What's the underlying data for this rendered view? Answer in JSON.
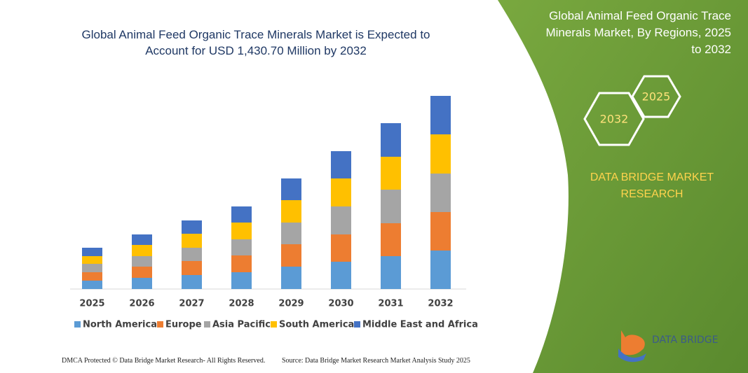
{
  "chart_data": {
    "type": "stacked_bar",
    "title": "Global Animal Feed Organic Trace Minerals Market is Expected to Account for USD 1,430.70 Million by 2032",
    "categories": [
      "2025",
      "2026",
      "2027",
      "2028",
      "2029",
      "2030",
      "2031",
      "2032"
    ],
    "series": [
      {
        "name": "North America",
        "color": "#5b9bd5",
        "values": [
          12,
          16,
          20,
          24,
          32,
          39,
          47,
          55
        ]
      },
      {
        "name": "Europe",
        "color": "#ed7d31",
        "values": [
          12,
          16,
          20,
          24,
          32,
          39,
          47,
          55
        ]
      },
      {
        "name": "Asia Pacific",
        "color": "#a5a5a5",
        "values": [
          12,
          15,
          19,
          23,
          31,
          40,
          48,
          55
        ]
      },
      {
        "name": "South America",
        "color": "#ffc000",
        "values": [
          11,
          16,
          20,
          24,
          32,
          40,
          47,
          56
        ]
      },
      {
        "name": "Middle East and Africa",
        "color": "#4472c4",
        "values": [
          12,
          15,
          19,
          23,
          31,
          39,
          48,
          55
        ]
      }
    ],
    "ylim": [
      0,
      280
    ]
  },
  "panel": {
    "title": "Global Animal Feed Organic Trace Minerals Market, By Regions, 2025 to 2032",
    "hex_small": "2025",
    "hex_large": "2032",
    "brand": "DATA BRIDGE MARKET RESEARCH",
    "logo": "DATA BRIDGE"
  },
  "footer": {
    "left": "DMCA Protected © Data Bridge Market Research- All Rights Reserved.",
    "right": "Source: Data Bridge Market Research Market Analysis Study 2025"
  }
}
